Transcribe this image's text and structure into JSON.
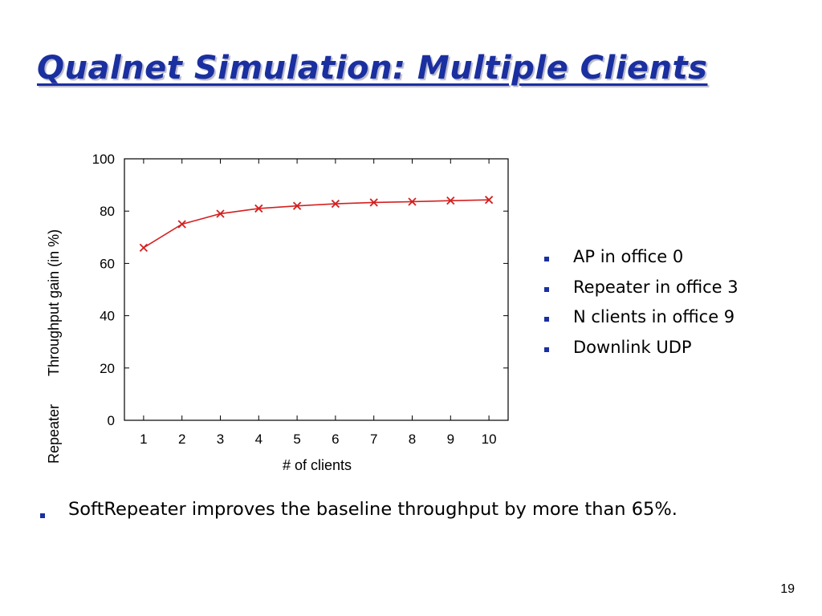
{
  "slide": {
    "title": "Qualnet Simulation: Multiple Clients",
    "bullets": [
      "AP in office 0",
      "Repeater in office 3",
      "N clients in office 9",
      "Downlink UDP"
    ],
    "summary": "SoftRepeater improves the baseline throughput by more than 65%.",
    "page_number": "19"
  },
  "colors": {
    "title": "#1a2fa0",
    "bullet": "#1a2fa0",
    "series": "#d42020"
  },
  "chart_data": {
    "type": "line",
    "title": "",
    "xlabel": "# of clients",
    "ylabel_lines": [
      "Repeater",
      "Throughput gain (in %)"
    ],
    "x": [
      1,
      2,
      3,
      4,
      5,
      6,
      7,
      8,
      9,
      10
    ],
    "xticks": [
      "1",
      "2",
      "3",
      "4",
      "5",
      "6",
      "7",
      "8",
      "9",
      "10"
    ],
    "xlim": [
      0.5,
      10.5
    ],
    "ylim": [
      0,
      100
    ],
    "yticks": [
      "0",
      "20",
      "40",
      "60",
      "80",
      "100"
    ],
    "grid": false,
    "series": [
      {
        "values": [
          66,
          75,
          79,
          81,
          82,
          82.8,
          83.3,
          83.6,
          84,
          84.3
        ],
        "marker": "x"
      }
    ]
  }
}
